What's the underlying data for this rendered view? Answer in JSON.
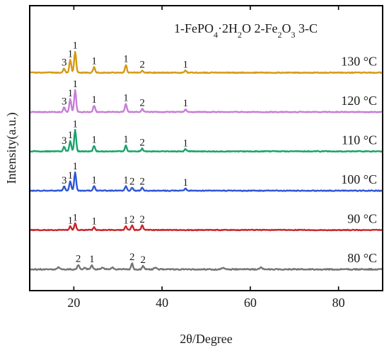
{
  "chart_data": {
    "type": "line",
    "title": "1-FePO4·2H2O 2-Fe2O3 3-C",
    "xlabel": "2θ/Degree",
    "ylabel": "Intensity(a.u.)",
    "xlim": [
      10,
      90
    ],
    "ylim": [
      0,
      6
    ],
    "y_ticks_shown": false,
    "grid": false,
    "x_ticks": [
      20,
      40,
      60,
      80
    ],
    "x_tick_labels": [
      "20",
      "40",
      "60",
      "80"
    ],
    "series": [
      {
        "name": "130 °C",
        "label": "130 °C",
        "color": "#d59a14",
        "baseline": 5.0,
        "peaks": [
          {
            "x": 17.8,
            "h": 0.09,
            "label": "3"
          },
          {
            "x": 19.2,
            "h": 0.28,
            "label": "1"
          },
          {
            "x": 20.3,
            "h": 0.46,
            "label": "1"
          },
          {
            "x": 24.6,
            "h": 0.12,
            "label": "1"
          },
          {
            "x": 31.8,
            "h": 0.17,
            "label": "1"
          },
          {
            "x": 35.5,
            "h": 0.05,
            "label": "2"
          },
          {
            "x": 45.3,
            "h": 0.05,
            "label": "1"
          }
        ]
      },
      {
        "name": "120 °C",
        "label": "120 °C",
        "color": "#c77ed6",
        "baseline": 4.0,
        "peaks": [
          {
            "x": 17.8,
            "h": 0.1,
            "label": "3"
          },
          {
            "x": 19.2,
            "h": 0.28,
            "label": "1"
          },
          {
            "x": 20.3,
            "h": 0.48,
            "label": "1"
          },
          {
            "x": 24.6,
            "h": 0.14,
            "label": "1"
          },
          {
            "x": 31.8,
            "h": 0.18,
            "label": "1"
          },
          {
            "x": 35.5,
            "h": 0.07,
            "label": "2"
          },
          {
            "x": 45.3,
            "h": 0.06,
            "label": "1"
          }
        ]
      },
      {
        "name": "110 °C",
        "label": "110 °C",
        "color": "#1aa36b",
        "baseline": 3.0,
        "peaks": [
          {
            "x": 17.8,
            "h": 0.1,
            "label": "3"
          },
          {
            "x": 19.2,
            "h": 0.22,
            "label": "1"
          },
          {
            "x": 20.3,
            "h": 0.46,
            "label": "1"
          },
          {
            "x": 24.6,
            "h": 0.12,
            "label": "1"
          },
          {
            "x": 31.8,
            "h": 0.13,
            "label": "1"
          },
          {
            "x": 35.5,
            "h": 0.06,
            "label": "2"
          },
          {
            "x": 45.3,
            "h": 0.05,
            "label": "1"
          }
        ]
      },
      {
        "name": "100 °C",
        "label": "100 °C",
        "color": "#2f56d6",
        "baseline": 2.0,
        "peaks": [
          {
            "x": 17.8,
            "h": 0.09,
            "label": "3"
          },
          {
            "x": 19.2,
            "h": 0.2,
            "label": "1"
          },
          {
            "x": 20.3,
            "h": 0.4,
            "label": "1"
          },
          {
            "x": 24.6,
            "h": 0.1,
            "label": "1"
          },
          {
            "x": 31.8,
            "h": 0.1,
            "label": "1"
          },
          {
            "x": 33.2,
            "h": 0.07,
            "label": "2"
          },
          {
            "x": 35.5,
            "h": 0.07,
            "label": "2"
          },
          {
            "x": 45.3,
            "h": 0.05,
            "label": "1"
          }
        ]
      },
      {
        "name": "90 °C",
        "label": "90 °C",
        "color": "#c8262a",
        "baseline": 1.0,
        "peaks": [
          {
            "x": 19.2,
            "h": 0.08,
            "label": "1"
          },
          {
            "x": 20.3,
            "h": 0.14,
            "label": "1"
          },
          {
            "x": 24.6,
            "h": 0.06,
            "label": "1"
          },
          {
            "x": 31.8,
            "h": 0.08,
            "label": "1"
          },
          {
            "x": 33.2,
            "h": 0.1,
            "label": "2"
          },
          {
            "x": 35.5,
            "h": 0.1,
            "label": "2"
          }
        ]
      },
      {
        "name": "80 °C",
        "label": "80 °C",
        "color": "#757575",
        "baseline": 0.0,
        "peaks": [
          {
            "x": 21.0,
            "h": 0.1,
            "label": "2"
          },
          {
            "x": 24.1,
            "h": 0.09,
            "label": "1"
          },
          {
            "x": 33.2,
            "h": 0.14,
            "label": "2"
          },
          {
            "x": 35.7,
            "h": 0.08,
            "label": "2"
          }
        ]
      }
    ]
  }
}
